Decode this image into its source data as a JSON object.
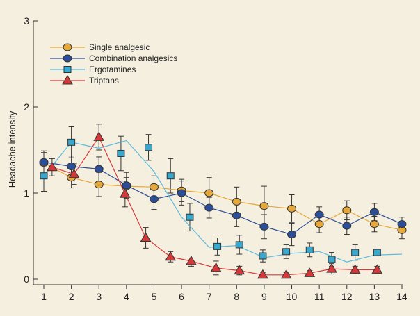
{
  "chart_data": {
    "type": "line",
    "title": "",
    "xlabel": "",
    "ylabel": "Headache intensity",
    "xlim": [
      1,
      14
    ],
    "ylim": [
      0,
      3
    ],
    "x_ticks": [
      "1",
      "2",
      "3",
      "4",
      "5",
      "6",
      "7",
      "8",
      "9",
      "10",
      "11",
      "12",
      "13",
      "14"
    ],
    "y_ticks": [
      "0",
      "1",
      "2",
      "3"
    ],
    "grid": false,
    "legend_position": "top-left",
    "series": [
      {
        "name": "Single analgesic",
        "color": "#e6a83a",
        "line_color": "#e6a83a",
        "marker": "circle",
        "x": [
          1,
          2,
          3,
          4,
          5,
          6,
          7,
          8,
          9,
          10,
          11,
          12,
          13,
          14
        ],
        "y": [
          1.35,
          1.18,
          1.1,
          1.08,
          1.07,
          1.03,
          1.0,
          0.9,
          0.85,
          0.82,
          0.64,
          0.8,
          0.64,
          0.57
        ],
        "err": [
          0.12,
          0.12,
          0.14,
          0.1,
          0.13,
          0.13,
          0.18,
          0.17,
          0.23,
          0.16,
          0.1,
          0.11,
          0.09,
          0.1
        ]
      },
      {
        "name": "Combination analgesics",
        "color": "#2c4e98",
        "line_color": "#2c4e98",
        "marker": "circle",
        "x": [
          1,
          2,
          3,
          4,
          5,
          6,
          7,
          8,
          9,
          10,
          11,
          12,
          13,
          14
        ],
        "y": [
          1.36,
          1.31,
          1.28,
          1.09,
          0.93,
          1.0,
          0.83,
          0.74,
          0.61,
          0.52,
          0.75,
          0.62,
          0.78,
          0.64
        ],
        "err": [
          0.13,
          0.12,
          0.14,
          0.15,
          0.12,
          0.14,
          0.12,
          0.13,
          0.14,
          0.13,
          0.09,
          0.1,
          0.1,
          0.08
        ]
      },
      {
        "name": "Ergotamines",
        "color": "#3aa7cc",
        "line_color": "#5bbbe0",
        "marker": "square",
        "x": [
          1,
          2,
          3,
          4,
          5,
          6,
          7,
          8,
          9,
          10,
          11,
          12,
          13,
          14
        ],
        "y": [
          1.2,
          1.59,
          1.52,
          1.61,
          1.25,
          0.72,
          0.37,
          0.39,
          0.25,
          0.3,
          0.32,
          0.2,
          0.28,
          0.29
        ],
        "marker_points": [
          [
            1,
            1.2
          ],
          [
            2,
            1.59
          ],
          [
            3.8,
            1.46
          ],
          [
            4.8,
            1.53
          ],
          [
            5.6,
            1.2
          ],
          [
            6.3,
            0.72
          ],
          [
            7.3,
            0.38
          ],
          [
            8.1,
            0.4
          ],
          [
            8.95,
            0.27
          ],
          [
            9.8,
            0.32
          ],
          [
            10.65,
            0.34
          ],
          [
            11.45,
            0.23
          ],
          [
            12.3,
            0.31
          ],
          [
            13.1,
            0.31
          ]
        ],
        "err": [
          0.18,
          0.18,
          0.2,
          0.15,
          0.2,
          0.16,
          0.1,
          0.11,
          0.07,
          0.08,
          0.08,
          0.08,
          0.09,
          0.0
        ]
      },
      {
        "name": "Triptans",
        "color": "#d6393a",
        "line_color": "#d6393a",
        "marker": "triangle",
        "x": [
          1.3,
          2.1,
          3.0,
          3.95,
          4.7,
          5.6,
          6.35,
          7.25,
          8.1,
          8.95,
          9.8,
          10.65,
          11.45,
          12.3,
          13.1
        ],
        "y": [
          1.3,
          1.22,
          1.65,
          0.99,
          0.48,
          0.26,
          0.21,
          0.13,
          0.1,
          0.05,
          0.05,
          0.07,
          0.12,
          0.11,
          0.11
        ],
        "err": [
          0.1,
          0.12,
          0.15,
          0.15,
          0.12,
          0.06,
          0.06,
          0.08,
          0.05,
          0.03,
          0.03,
          0.03,
          0.06,
          0.04,
          0.04
        ]
      }
    ]
  }
}
